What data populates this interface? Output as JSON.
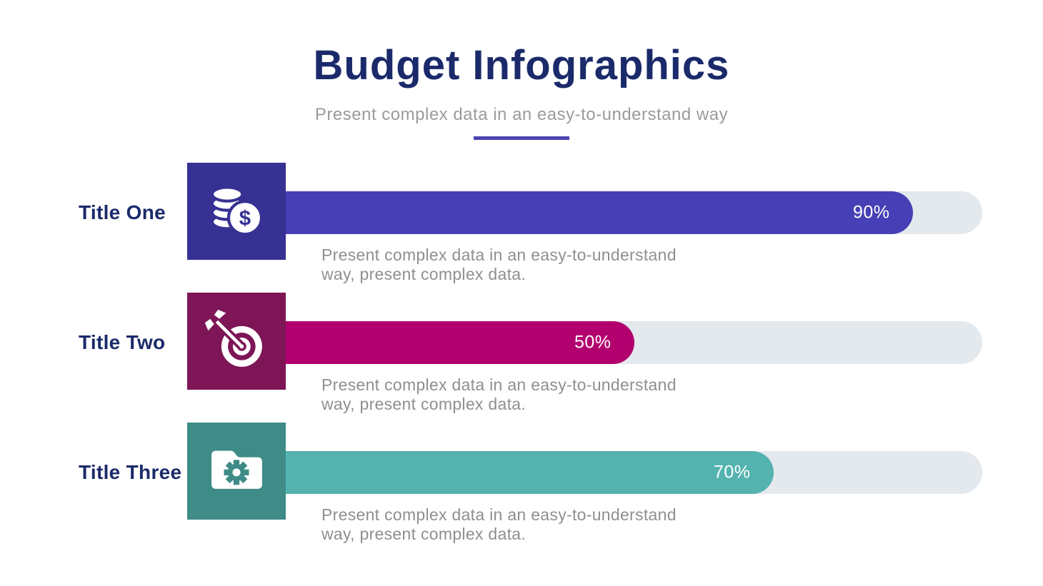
{
  "page": {
    "title": "Budget Infographics",
    "subtitle": "Present complex data in an easy-to-understand way"
  },
  "colors": {
    "title_navy": "#1b2a6a",
    "subtitle_gray": "#9b9b9b",
    "divider_purple": "#4c44b2",
    "track_gray": "#e4e9ee",
    "description_gray": "#8f8f8f"
  },
  "chart_data": {
    "type": "bar",
    "orientation": "horizontal",
    "title": "Budget Infographics",
    "subtitle": "Present complex data in an easy-to-understand way",
    "categories": [
      "Title One",
      "Title Two",
      "Title Three"
    ],
    "values": [
      90,
      50,
      70
    ],
    "xlim": [
      0,
      100
    ],
    "legend": "none",
    "grid": false,
    "rows": [
      {
        "label": "Title One",
        "value": 90,
        "value_label": "90%",
        "icon": "coins-dollar-icon",
        "box_color": "#363193",
        "bar_color": "#473fb6",
        "description": "Present complex data in an easy-to-understand way, present complex data."
      },
      {
        "label": "Title Two",
        "value": 50,
        "value_label": "50%",
        "icon": "target-dart-icon",
        "box_color": "#7d1556",
        "bar_color": "#b2006e",
        "description": "Present complex data in an easy-to-understand way, present complex data."
      },
      {
        "label": "Title Three",
        "value": 70,
        "value_label": "70%",
        "icon": "folder-gear-icon",
        "box_color": "#3e8b87",
        "bar_color": "#54b3af",
        "description": "Present complex data in an easy-to-understand way, present complex data."
      }
    ]
  }
}
